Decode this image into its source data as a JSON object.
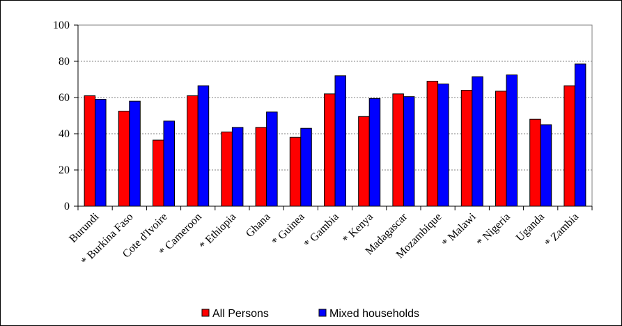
{
  "chart_data": {
    "type": "bar",
    "categories": [
      "Burundi",
      "* Burkina Faso",
      "Cote d'Ivoire",
      "* Cameroon",
      "* Ethiopia",
      "Ghana",
      "* Guinea",
      "* Gambia",
      "* Kenya",
      "Madagascar",
      "Mozambique",
      "* Malawi",
      "* Nigeria",
      "Uganda",
      "* Zambia"
    ],
    "series": [
      {
        "name": "All Persons",
        "color": "#ff0000",
        "values": [
          61,
          52.5,
          36.5,
          61,
          41,
          43.5,
          38,
          62,
          49.5,
          62,
          69,
          64,
          63.5,
          48,
          66.5
        ]
      },
      {
        "name": "Mixed households",
        "color": "#0000ff",
        "values": [
          59,
          58,
          47,
          66.5,
          43.5,
          52,
          43,
          72,
          59.5,
          60.5,
          67.5,
          71.5,
          72.5,
          45,
          78.5
        ]
      }
    ],
    "yticks": [
      "0",
      "20",
      "40",
      "60",
      "80",
      "100"
    ],
    "ylim": [
      0,
      100
    ],
    "grid": true,
    "legend": "bottom"
  }
}
